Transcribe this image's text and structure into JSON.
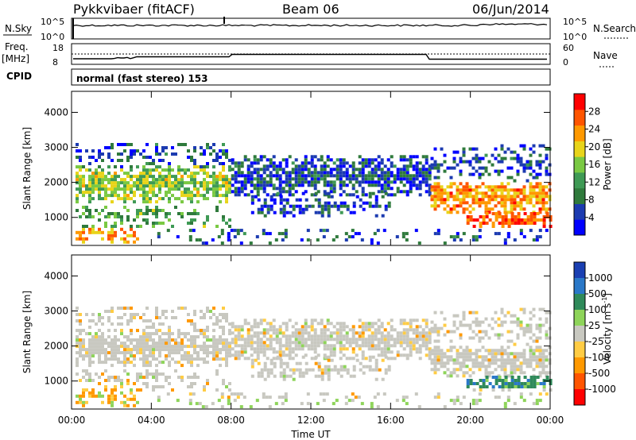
{
  "header": {
    "station": "Pykkvibaer (fitACF)",
    "beam": "Beam 06",
    "date": "06/Jun/2014"
  },
  "top_panels": {
    "nsky_label": "N.Sky",
    "nsky_ticks": [
      "10^5",
      "10^0"
    ],
    "nsearch_label": "N.Search",
    "nsearch_ticks": [
      "10^5",
      "10^0"
    ],
    "freq_label": "Freq.",
    "freq_unit": "[MHz]",
    "freq_ticks": [
      "18",
      "8"
    ],
    "nave_label": "Nave",
    "nave_ticks": [
      "60",
      "0"
    ],
    "cpid_label": "CPID",
    "cpid_text": "normal (fast stereo) 153"
  },
  "colors": {
    "power_scale": [
      "#0000ff",
      "#1c3bb0",
      "#2f7a3c",
      "#3f9a55",
      "#7ac943",
      "#e8d41a",
      "#ff9900",
      "#ff5500",
      "#ff0000"
    ],
    "velocity_scale": [
      "#1a3fb2",
      "#2a78c8",
      "#2f8a5a",
      "#8ed45a",
      "#c8c8c0",
      "#ffcc44",
      "#ff9900",
      "#ff5500",
      "#ff0000"
    ],
    "gray": "#c8c8c0"
  },
  "chart_data": [
    {
      "type": "heatmap",
      "panel": "power",
      "ylabel": "Slant Range [km]",
      "yticks": [
        "1000",
        "2000",
        "3000",
        "4000"
      ],
      "ylim": [
        200,
        4600
      ],
      "xlim_hours": [
        0,
        24
      ],
      "colorbar_label": "Power [dB]",
      "colorbar_ticks": [
        "4",
        "8",
        "12",
        "16",
        "20",
        "24",
        "28"
      ],
      "echo_bands": [
        {
          "t0": 0.2,
          "t1": 8.0,
          "r0": 1400,
          "r1": 2400,
          "level": "medium-high"
        },
        {
          "t0": 8.0,
          "t1": 18.0,
          "r0": 1600,
          "r1": 2700,
          "level": "low"
        },
        {
          "t0": 18.0,
          "t1": 24.0,
          "r0": 1100,
          "r1": 2000,
          "level": "high"
        },
        {
          "t0": 19.8,
          "t1": 24.0,
          "r0": 700,
          "r1": 1100,
          "level": "very-high"
        }
      ]
    },
    {
      "type": "heatmap",
      "panel": "velocity",
      "ylabel": "Slant Range [km]",
      "yticks": [
        "1000",
        "2000",
        "3000",
        "4000"
      ],
      "ylim": [
        200,
        4600
      ],
      "xlim_hours": [
        0,
        24
      ],
      "xticks": [
        "00:00",
        "04:00",
        "08:00",
        "12:00",
        "16:00",
        "20:00",
        "00:00"
      ],
      "xlabel": "Time UT",
      "colorbar_label": "Velocity [m s",
      "colorbar_label_sup": "-1",
      "colorbar_ticks": [
        "1000",
        "500",
        "100",
        "25",
        "-25",
        "-100",
        "-500",
        "-1000"
      ]
    }
  ]
}
